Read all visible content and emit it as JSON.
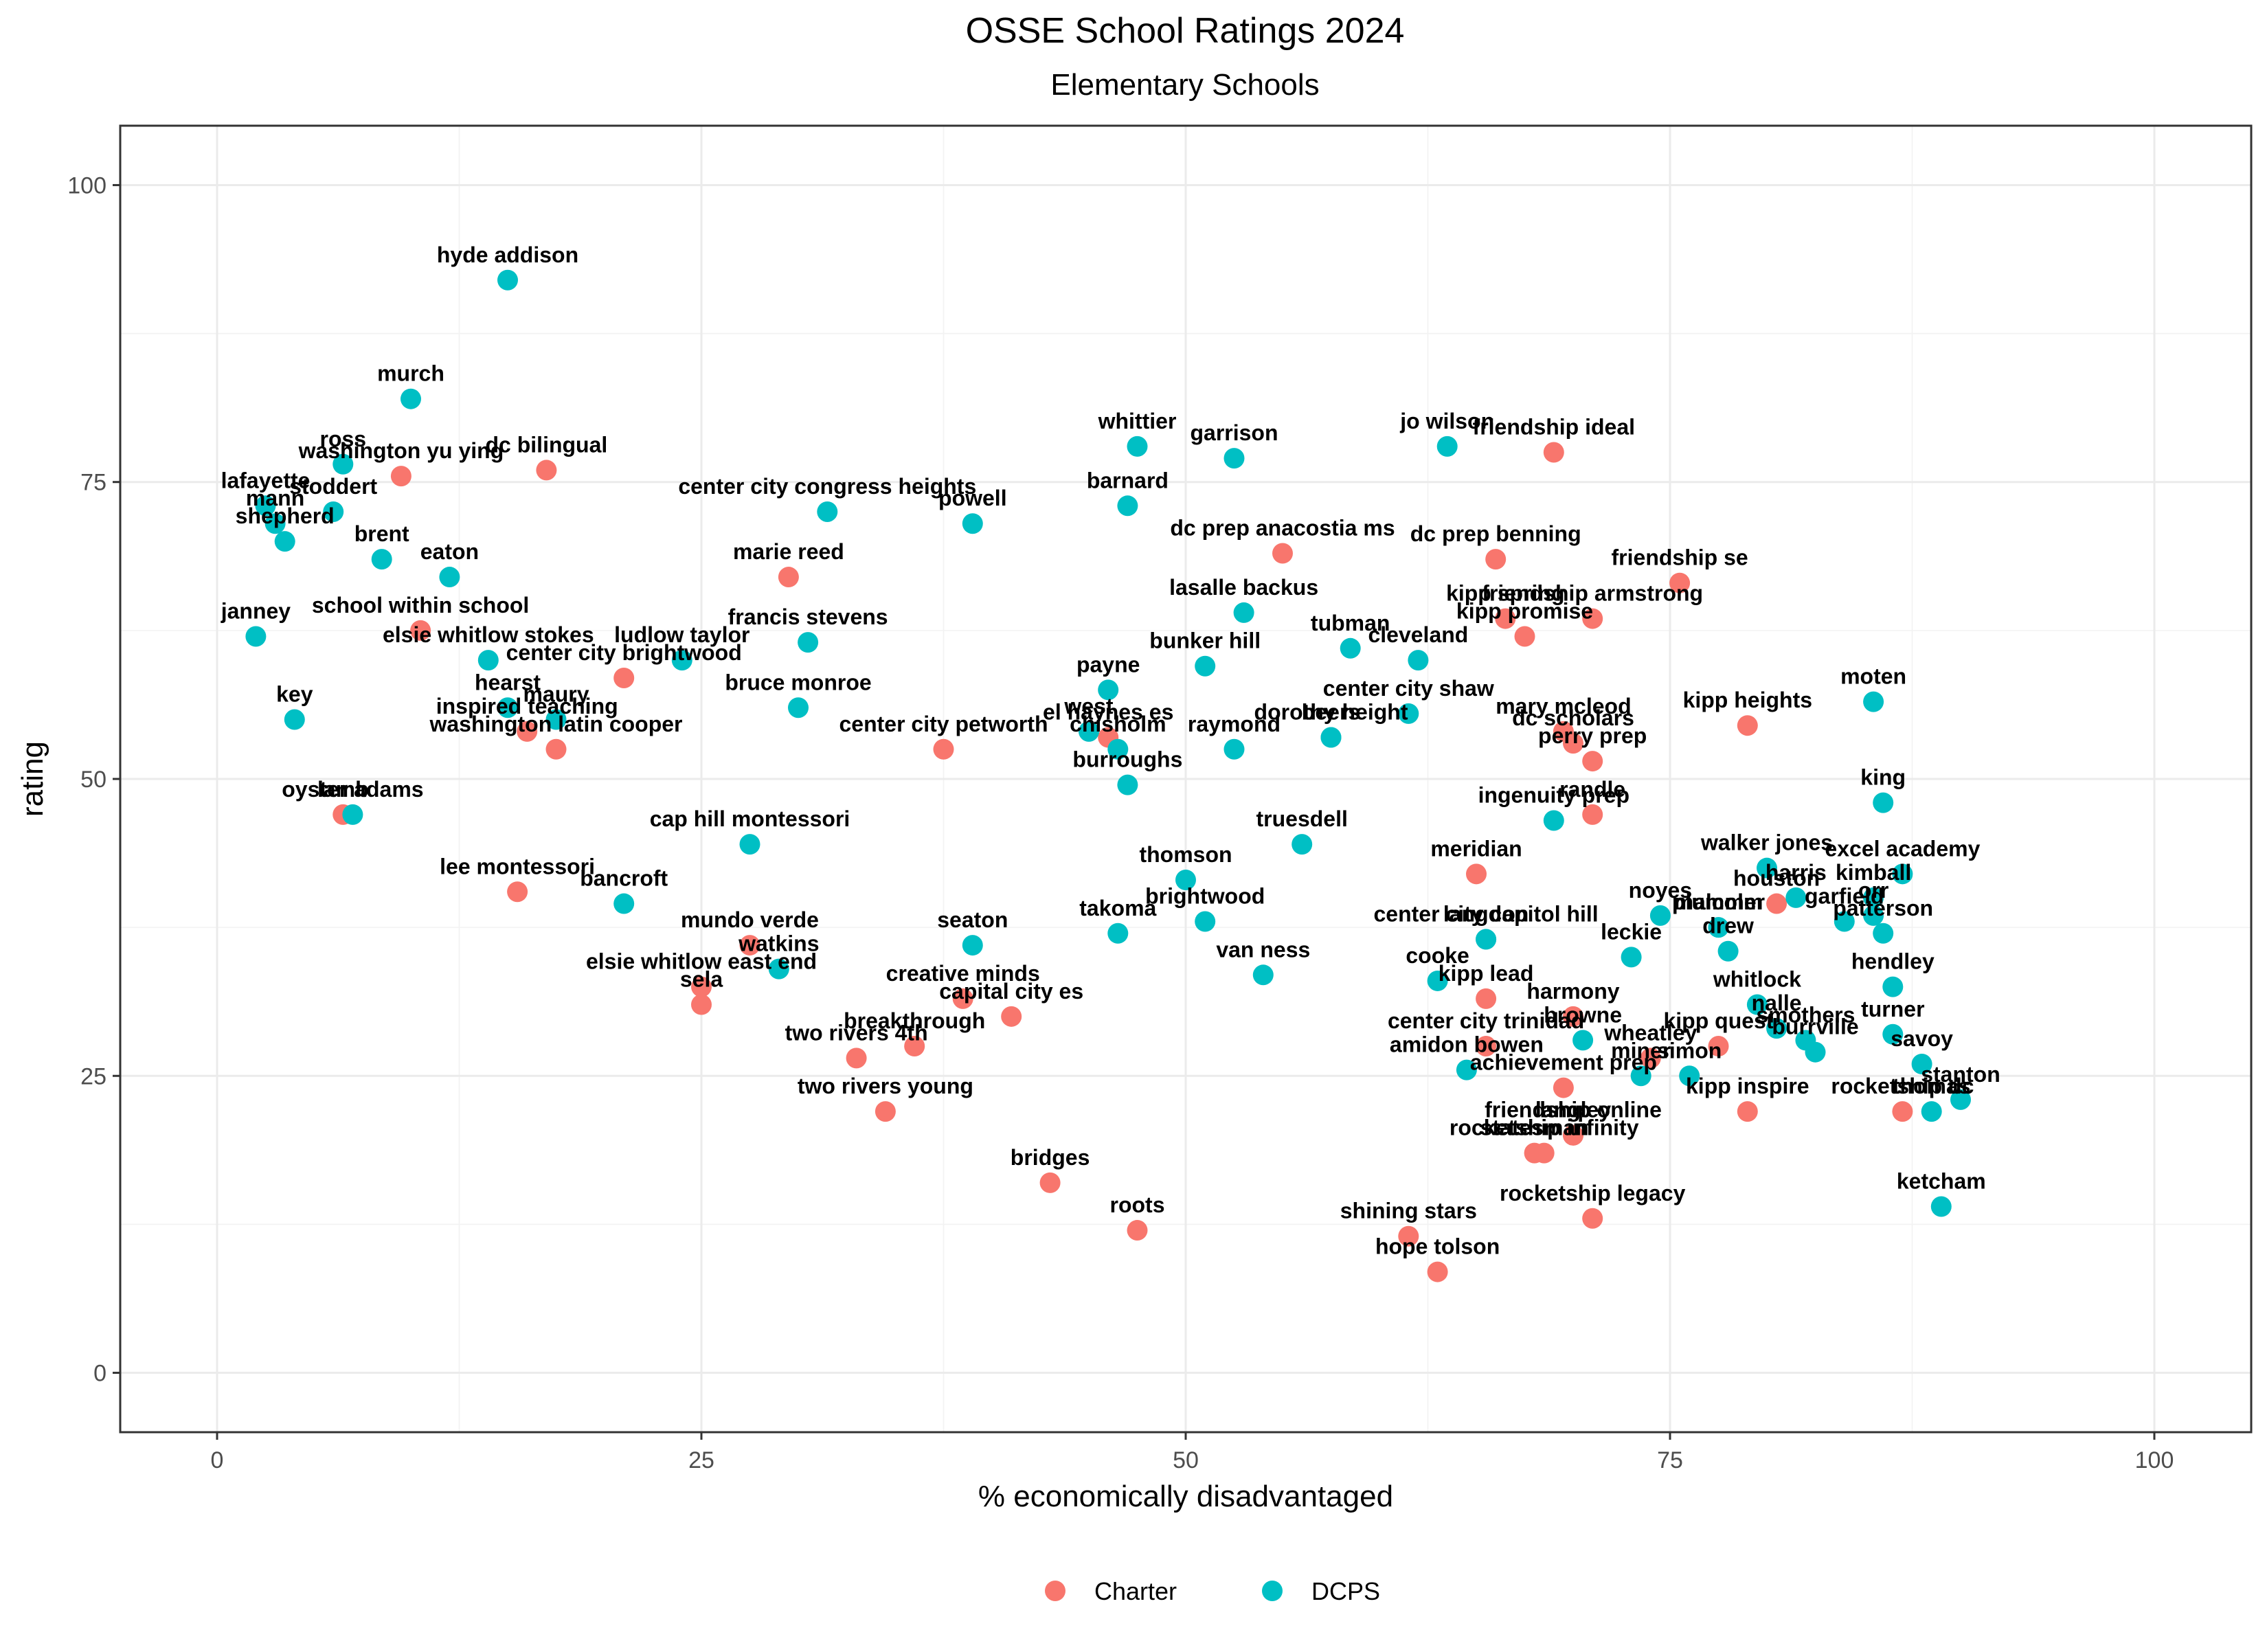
{
  "chart_data": {
    "type": "scatter",
    "title": "OSSE School Ratings 2024",
    "subtitle": "Elementary Schools",
    "xlabel": "% economically disadvantaged",
    "ylabel": "rating",
    "xlim": [
      -5,
      105
    ],
    "ylim": [
      -5,
      105
    ],
    "xticks": [
      0,
      25,
      50,
      75,
      100
    ],
    "yticks": [
      0,
      25,
      50,
      75,
      100
    ],
    "grid": true,
    "legend": {
      "position": "bottom",
      "entries": [
        {
          "name": "Charter",
          "color": "#F8766D"
        },
        {
          "name": "DCPS",
          "color": "#00BFC4"
        }
      ]
    },
    "series": [
      {
        "name": "Charter",
        "color": "#F8766D",
        "points": [
          {
            "label": "washington yu ying",
            "x": 9.5,
            "y": 75.5
          },
          {
            "label": "dc bilingual",
            "x": 17,
            "y": 76
          },
          {
            "label": "marie reed",
            "x": 29.5,
            "y": 67
          },
          {
            "label": "school within school",
            "x": 10.5,
            "y": 62.5
          },
          {
            "label": "center city brightwood",
            "x": 21,
            "y": 58.5
          },
          {
            "label": "inspired teaching",
            "x": 16,
            "y": 54
          },
          {
            "label": "washington latin cooper",
            "x": 17.5,
            "y": 52.5
          },
          {
            "label": "center city petworth",
            "x": 37.5,
            "y": 52.5
          },
          {
            "label": "el haynes es",
            "x": 46,
            "y": 53.5
          },
          {
            "label": "lamb",
            "x": 6.5,
            "y": 47
          },
          {
            "label": "lee montessori",
            "x": 15.5,
            "y": 40.5
          },
          {
            "label": "mundo verde",
            "x": 27.5,
            "y": 36
          },
          {
            "label": "elsie whitlow east end",
            "x": 25,
            "y": 32.5
          },
          {
            "label": "sela",
            "x": 25,
            "y": 31
          },
          {
            "label": "creative minds",
            "x": 38.5,
            "y": 31.5
          },
          {
            "label": "capital city es",
            "x": 41,
            "y": 30
          },
          {
            "label": "breakthrough",
            "x": 36,
            "y": 27.5
          },
          {
            "label": "two rivers 4th",
            "x": 33,
            "y": 26.5
          },
          {
            "label": "two rivers young",
            "x": 34.5,
            "y": 22
          },
          {
            "label": "bridges",
            "x": 43,
            "y": 16
          },
          {
            "label": "roots",
            "x": 47.5,
            "y": 12
          },
          {
            "label": "dc prep anacostia ms",
            "x": 55,
            "y": 69
          },
          {
            "label": "friendship ideal",
            "x": 69,
            "y": 77.5
          },
          {
            "label": "dc prep benning",
            "x": 66,
            "y": 68.5
          },
          {
            "label": "kipp spring",
            "x": 66.5,
            "y": 63.5
          },
          {
            "label": "kipp promise",
            "x": 67.5,
            "y": 62
          },
          {
            "label": "friendship armstrong",
            "x": 71,
            "y": 63.5
          },
          {
            "label": "friendship se",
            "x": 75.5,
            "y": 66.5
          },
          {
            "label": "mary mcleod",
            "x": 69.5,
            "y": 54
          },
          {
            "label": "dc scholars",
            "x": 70,
            "y": 53
          },
          {
            "label": "perry prep",
            "x": 71,
            "y": 51.5
          },
          {
            "label": "kipp heights",
            "x": 79,
            "y": 54.5
          },
          {
            "label": "randle",
            "x": 71,
            "y": 47
          },
          {
            "label": "meridian",
            "x": 65,
            "y": 42
          },
          {
            "label": "houston",
            "x": 80.5,
            "y": 39.5
          },
          {
            "label": "kipp lead",
            "x": 65.5,
            "y": 31.5
          },
          {
            "label": "harmony",
            "x": 70,
            "y": 30
          },
          {
            "label": "center city trinidad",
            "x": 65.5,
            "y": 27.5
          },
          {
            "label": "wheatley",
            "x": 74,
            "y": 26.5
          },
          {
            "label": "achievement prep",
            "x": 69.5,
            "y": 24
          },
          {
            "label": "langley",
            "x": 70,
            "y": 20
          },
          {
            "label": "rocketship infinity",
            "x": 68.5,
            "y": 18.5
          },
          {
            "label": "friendship online",
            "x": 70,
            "y": 20
          },
          {
            "label": "statesman",
            "x": 68,
            "y": 18.5
          },
          {
            "label": "kipp quest",
            "x": 77.5,
            "y": 27.5
          },
          {
            "label": "kipp inspire",
            "x": 79,
            "y": 22
          },
          {
            "label": "rocketship legacy",
            "x": 71,
            "y": 13
          },
          {
            "label": "shining stars",
            "x": 61.5,
            "y": 11.5
          },
          {
            "label": "hope tolson",
            "x": 63,
            "y": 8.5
          },
          {
            "label": "rocketship dc",
            "x": 87,
            "y": 22
          }
        ]
      },
      {
        "name": "DCPS",
        "color": "#00BFC4",
        "points": [
          {
            "label": "hyde addison",
            "x": 15,
            "y": 92
          },
          {
            "label": "murch",
            "x": 10,
            "y": 82
          },
          {
            "label": "ross",
            "x": 6.5,
            "y": 76.5
          },
          {
            "label": "stoddert",
            "x": 6,
            "y": 72.5
          },
          {
            "label": "lafayette",
            "x": 2.5,
            "y": 73
          },
          {
            "label": "mann",
            "x": 3,
            "y": 71.5
          },
          {
            "label": "shepherd",
            "x": 3.5,
            "y": 70
          },
          {
            "label": "brent",
            "x": 8.5,
            "y": 68.5
          },
          {
            "label": "eaton",
            "x": 12,
            "y": 67
          },
          {
            "label": "janney",
            "x": 2,
            "y": 62
          },
          {
            "label": "elsie whitlow stokes",
            "x": 14,
            "y": 60
          },
          {
            "label": "hearst",
            "x": 15,
            "y": 56
          },
          {
            "label": "maury",
            "x": 17.5,
            "y": 55
          },
          {
            "label": "key",
            "x": 4,
            "y": 55
          },
          {
            "label": "oyster adams",
            "x": 7,
            "y": 47
          },
          {
            "label": "ludlow taylor",
            "x": 24,
            "y": 60
          },
          {
            "label": "francis stevens",
            "x": 30.5,
            "y": 61.5
          },
          {
            "label": "bruce monroe",
            "x": 30,
            "y": 56
          },
          {
            "label": "powell",
            "x": 39,
            "y": 71.5
          },
          {
            "label": "whittier",
            "x": 47.5,
            "y": 78
          },
          {
            "label": "barnard",
            "x": 47,
            "y": 73
          },
          {
            "label": "garrison",
            "x": 52.5,
            "y": 77
          },
          {
            "label": "center city congress heights",
            "x": 31.5,
            "y": 72.5
          },
          {
            "label": "lasalle backus",
            "x": 53,
            "y": 64
          },
          {
            "label": "bunker hill",
            "x": 51,
            "y": 59.5
          },
          {
            "label": "tubman",
            "x": 58.5,
            "y": 61
          },
          {
            "label": "cleveland",
            "x": 62,
            "y": 60
          },
          {
            "label": "jo wilson",
            "x": 63.5,
            "y": 78
          },
          {
            "label": "payne",
            "x": 46,
            "y": 57.5
          },
          {
            "label": "west",
            "x": 45,
            "y": 54
          },
          {
            "label": "chisholm",
            "x": 46.5,
            "y": 52.5
          },
          {
            "label": "raymond",
            "x": 52.5,
            "y": 52.5
          },
          {
            "label": "burroughs",
            "x": 47,
            "y": 49.5
          },
          {
            "label": "dorothy height",
            "x": 57.5,
            "y": 53.5
          },
          {
            "label": "center city shaw",
            "x": 61.5,
            "y": 55.5
          },
          {
            "label": "beers",
            "x": 57.5,
            "y": 53.5
          },
          {
            "label": "truesdell",
            "x": 56,
            "y": 44.5
          },
          {
            "label": "cap hill montessori",
            "x": 27.5,
            "y": 44.5
          },
          {
            "label": "bancroft",
            "x": 21,
            "y": 39.5
          },
          {
            "label": "watkins",
            "x": 29,
            "y": 34
          },
          {
            "label": "seaton",
            "x": 39,
            "y": 36
          },
          {
            "label": "takoma",
            "x": 46.5,
            "y": 37
          },
          {
            "label": "thomson",
            "x": 50,
            "y": 41.5
          },
          {
            "label": "brightwood",
            "x": 51,
            "y": 38
          },
          {
            "label": "van ness",
            "x": 54,
            "y": 33.5
          },
          {
            "label": "cooke",
            "x": 63,
            "y": 33
          },
          {
            "label": "center city capitol hill",
            "x": 65.5,
            "y": 36.5
          },
          {
            "label": "langdon",
            "x": 65.5,
            "y": 36.5
          },
          {
            "label": "leckie",
            "x": 73,
            "y": 35
          },
          {
            "label": "noyes",
            "x": 74.5,
            "y": 38.5
          },
          {
            "label": "ingenuity prep",
            "x": 69,
            "y": 46.5
          },
          {
            "label": "plummer",
            "x": 77.5,
            "y": 37.5
          },
          {
            "label": "drew",
            "x": 78,
            "y": 35.5
          },
          {
            "label": "malcolm",
            "x": 77.5,
            "y": 37.5
          },
          {
            "label": "walker jones",
            "x": 80,
            "y": 42.5
          },
          {
            "label": "harris",
            "x": 81.5,
            "y": 40
          },
          {
            "label": "garfield",
            "x": 84,
            "y": 38
          },
          {
            "label": "moten",
            "x": 85.5,
            "y": 56.5
          },
          {
            "label": "king",
            "x": 86,
            "y": 48
          },
          {
            "label": "kimball",
            "x": 85.5,
            "y": 40
          },
          {
            "label": "excel academy",
            "x": 87,
            "y": 42
          },
          {
            "label": "orr",
            "x": 85.5,
            "y": 38.5
          },
          {
            "label": "patterson",
            "x": 86,
            "y": 37
          },
          {
            "label": "hendley",
            "x": 86.5,
            "y": 32.5
          },
          {
            "label": "whitlock",
            "x": 79.5,
            "y": 31
          },
          {
            "label": "nalle",
            "x": 80.5,
            "y": 29
          },
          {
            "label": "smothers",
            "x": 82,
            "y": 28
          },
          {
            "label": "turner",
            "x": 86.5,
            "y": 28.5
          },
          {
            "label": "savoy",
            "x": 88,
            "y": 26
          },
          {
            "label": "browne",
            "x": 70.5,
            "y": 28
          },
          {
            "label": "amidon bowen",
            "x": 64.5,
            "y": 25.5
          },
          {
            "label": "simon",
            "x": 76,
            "y": 25
          },
          {
            "label": "miner",
            "x": 73.5,
            "y": 25
          },
          {
            "label": "burrville",
            "x": 82.5,
            "y": 27
          },
          {
            "label": "stanton",
            "x": 90,
            "y": 23
          },
          {
            "label": "thomas",
            "x": 88.5,
            "y": 22
          },
          {
            "label": "ketcham",
            "x": 89,
            "y": 14
          }
        ]
      }
    ]
  }
}
